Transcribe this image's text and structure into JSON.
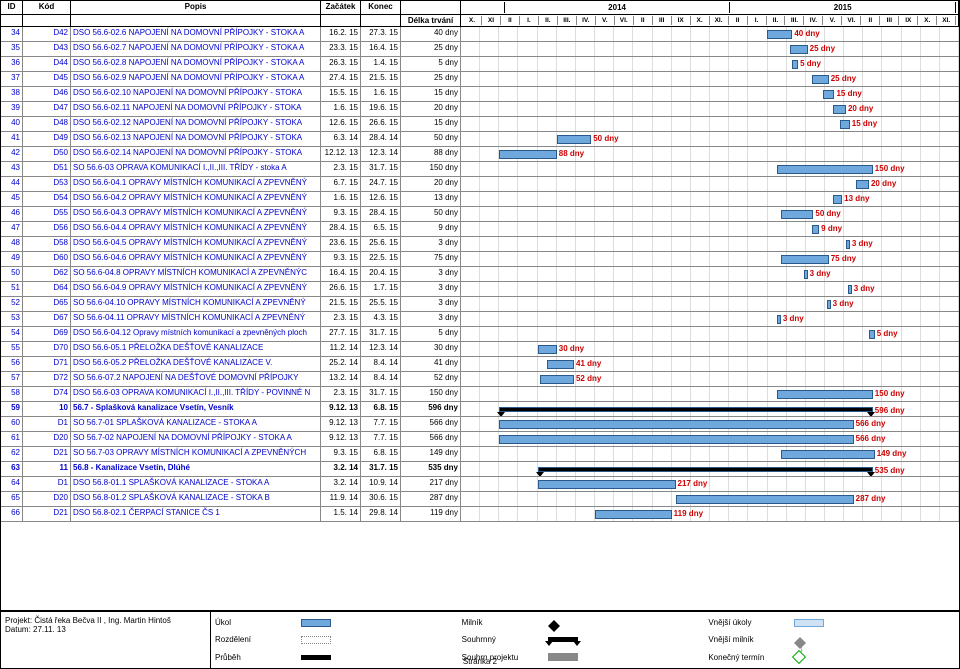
{
  "header": {
    "cols": [
      "ID",
      "Kód",
      "Popis",
      "Začátek",
      "Konec",
      "Délka trvání"
    ],
    "yearCols": [
      {
        "label": "",
        "months": [
          "X.",
          "XI"
        ]
      },
      {
        "label": "2014",
        "months": [
          "II",
          "I.",
          "II.",
          "III.",
          "IV.",
          "V.",
          "VI.",
          "II",
          "III",
          "IX",
          "X.",
          "XI."
        ]
      },
      {
        "label": "2015",
        "months": [
          "II",
          "I.",
          "II.",
          "III.",
          "IV.",
          "V.",
          "VI.",
          "II",
          "III",
          "IX",
          "X.",
          "XI."
        ]
      }
    ]
  },
  "ganttMonths": 26,
  "rows": [
    {
      "id": "34",
      "kod": "D42",
      "popis": "DSO 56.6-02.6 NAPOJENÍ NA DOMOVNÍ PŘÍPOJKY - STOKA A",
      "zac": "16.2. 15",
      "kon": "27.3. 15",
      "delka": "40 dny",
      "barStart": 16,
      "barLen": 1.3,
      "label": "40 dny"
    },
    {
      "id": "35",
      "kod": "D43",
      "popis": "DSO 56.6-02.7 NAPOJENÍ NA DOMOVNÍ PŘÍPOJKY - STOKA A",
      "zac": "23.3. 15",
      "kon": "16.4. 15",
      "delka": "25 dny",
      "barStart": 17.2,
      "barLen": 0.9,
      "label": "25 dny"
    },
    {
      "id": "36",
      "kod": "D44",
      "popis": "DSO 56.6-02.8 NAPOJENÍ NA DOMOVNÍ PŘÍPOJKY - STOKA A",
      "zac": "26.3. 15",
      "kon": "1.4. 15",
      "delka": "5 dny",
      "barStart": 17.3,
      "barLen": 0.3,
      "label": "5 dny"
    },
    {
      "id": "37",
      "kod": "D45",
      "popis": "DSO 56.6-02.9 NAPOJENÍ NA DOMOVNÍ PŘÍPOJKY - STOKA A",
      "zac": "27.4. 15",
      "kon": "21.5. 15",
      "delka": "25 dny",
      "barStart": 18.3,
      "barLen": 0.9,
      "label": "25 dny"
    },
    {
      "id": "38",
      "kod": "D46",
      "popis": "DSO 56.6-02.10 NAPOJENÍ NA DOMOVNÍ PŘÍPOJKY - STOKA",
      "zac": "15.5. 15",
      "kon": "1.6. 15",
      "delka": "15 dny",
      "barStart": 18.9,
      "barLen": 0.6,
      "label": "15 dny"
    },
    {
      "id": "39",
      "kod": "D47",
      "popis": "DSO 56.6-02.11 NAPOJENÍ NA DOMOVNÍ PŘÍPOJKY - STOKA",
      "zac": "1.6. 15",
      "kon": "19.6. 15",
      "delka": "20 dny",
      "barStart": 19.4,
      "barLen": 0.7,
      "label": "20 dny"
    },
    {
      "id": "40",
      "kod": "D48",
      "popis": "DSO 56.6-02.12 NAPOJENÍ NA DOMOVNÍ PŘÍPOJKY - STOKA",
      "zac": "12.6. 15",
      "kon": "26.6. 15",
      "delka": "15 dny",
      "barStart": 19.8,
      "barLen": 0.5,
      "label": "15 dny"
    },
    {
      "id": "41",
      "kod": "D49",
      "popis": "DSO 56.6-02.13 NAPOJENÍ NA DOMOVNÍ PŘÍPOJKY - STOKA",
      "zac": "6.3. 14",
      "kon": "28.4. 14",
      "delka": "50 dny",
      "barStart": 5,
      "barLen": 1.8,
      "label": "50 dny"
    },
    {
      "id": "42",
      "kod": "D50",
      "popis": "DSO 56.6-02.14 NAPOJENÍ NA DOMOVNÍ PŘÍPOJKY - STOKA",
      "zac": "12.12. 13",
      "kon": "12.3. 14",
      "delka": "88 dny",
      "barStart": 2,
      "barLen": 3,
      "label": "88 dny"
    },
    {
      "id": "43",
      "kod": "D51",
      "popis": "SO 56.6-03 OPRAVA KOMUNIKACÍ I.,II.,III. TŘÍDY - stoka A",
      "zac": "2.3. 15",
      "kon": "31.7. 15",
      "delka": "150 dny",
      "barStart": 16.5,
      "barLen": 5,
      "label": "150 dny"
    },
    {
      "id": "44",
      "kod": "D53",
      "popis": "DSO 56.6-04.1 OPRAVY MÍSTNÍCH KOMUNIKACÍ A ZPEVNĚNÝ",
      "zac": "6.7. 15",
      "kon": "24.7. 15",
      "delka": "20 dny",
      "barStart": 20.6,
      "barLen": 0.7,
      "label": "20 dny"
    },
    {
      "id": "45",
      "kod": "D54",
      "popis": "DSO 56.6-04.2 OPRAVY MÍSTNÍCH KOMUNIKACÍ A ZPEVNĚNÝ",
      "zac": "1.6. 15",
      "kon": "12.6. 15",
      "delka": "13 dny",
      "barStart": 19.4,
      "barLen": 0.5,
      "label": "13 dny"
    },
    {
      "id": "46",
      "kod": "D55",
      "popis": "DSO 56.6-04.3 OPRAVY MÍSTNÍCH KOMUNIKACÍ A ZPEVNĚNÝ",
      "zac": "9.3. 15",
      "kon": "28.4. 15",
      "delka": "50 dny",
      "barStart": 16.7,
      "barLen": 1.7,
      "label": "50 dny"
    },
    {
      "id": "47",
      "kod": "D56",
      "popis": "DSO 56.6-04.4 OPRAVY MÍSTNÍCH KOMUNIKACÍ A ZPEVNĚNÝ",
      "zac": "28.4. 15",
      "kon": "6.5. 15",
      "delka": "9 dny",
      "barStart": 18.3,
      "barLen": 0.4,
      "label": "9 dny"
    },
    {
      "id": "48",
      "kod": "D58",
      "popis": "DSO 56.6-04.5 OPRAVY MÍSTNÍCH KOMUNIKACÍ A ZPEVNĚNÝ",
      "zac": "23.6. 15",
      "kon": "25.6. 15",
      "delka": "3 dny",
      "barStart": 20.1,
      "barLen": 0.2,
      "label": "3 dny"
    },
    {
      "id": "49",
      "kod": "D60",
      "popis": "DSO 56.6-04.6 OPRAVY MÍSTNÍCH KOMUNIKACÍ A ZPEVNĚNÝ",
      "zac": "9.3. 15",
      "kon": "22.5. 15",
      "delka": "75 dny",
      "barStart": 16.7,
      "barLen": 2.5,
      "label": "75 dny"
    },
    {
      "id": "50",
      "kod": "D62",
      "popis": "SO 56.6-04.8 OPRAVY MÍSTNÍCH KOMUNIKACÍ A ZPEVNĚNÝC",
      "zac": "16.4. 15",
      "kon": "20.4. 15",
      "delka": "3 dny",
      "barStart": 17.9,
      "barLen": 0.2,
      "label": "3 dny"
    },
    {
      "id": "51",
      "kod": "D64",
      "popis": "DSO 56.6-04.9 OPRAVY MÍSTNÍCH KOMUNIKACÍ A ZPEVNĚNÝ",
      "zac": "26.6. 15",
      "kon": "1.7. 15",
      "delka": "3 dny",
      "barStart": 20.2,
      "barLen": 0.2,
      "label": "3 dny"
    },
    {
      "id": "52",
      "kod": "D65",
      "popis": "SO 56.6-04.10 OPRAVY MÍSTNÍCH KOMUNIKACÍ A ZPEVNĚNÝ",
      "zac": "21.5. 15",
      "kon": "25.5. 15",
      "delka": "3 dny",
      "barStart": 19.1,
      "barLen": 0.2,
      "label": "3 dny"
    },
    {
      "id": "53",
      "kod": "D67",
      "popis": "SO 56.6-04.11 OPRAVY MÍSTNÍCH KOMUNIKACÍ A ZPEVNĚNÝ",
      "zac": "2.3. 15",
      "kon": "4.3. 15",
      "delka": "3 dny",
      "barStart": 16.5,
      "barLen": 0.2,
      "label": "3 dny"
    },
    {
      "id": "54",
      "kod": "D69",
      "popis": "DSO 56.6-04.12 Opravy místních komunikací a zpevněných ploch",
      "zac": "27.7. 15",
      "kon": "31.7. 15",
      "delka": "5 dny",
      "barStart": 21.3,
      "barLen": 0.3,
      "label": "5 dny"
    },
    {
      "id": "55",
      "kod": "D70",
      "popis": "DSO 56.6-05.1 PŘELOŽKA DEŠŤOVÉ KANALIZACE",
      "zac": "11.2. 14",
      "kon": "12.3. 14",
      "delka": "30 dny",
      "barStart": 4,
      "barLen": 1,
      "label": "30 dny"
    },
    {
      "id": "56",
      "kod": "D71",
      "popis": "DSO 56.6-05.2 PŘELOŽKA DEŠŤOVÉ KANALIZACE V.",
      "zac": "25.2. 14",
      "kon": "8.4. 14",
      "delka": "41 dny",
      "barStart": 4.5,
      "barLen": 1.4,
      "label": "41 dny"
    },
    {
      "id": "57",
      "kod": "D72",
      "popis": "SO 56.6-07.2 NAPOJENÍ NA DEŠŤOVÉ DOMOVNÍ PŘÍPOJKY",
      "zac": "13.2. 14",
      "kon": "8.4. 14",
      "delka": "52 dny",
      "barStart": 4.1,
      "barLen": 1.8,
      "label": "52 dny"
    },
    {
      "id": "58",
      "kod": "D74",
      "popis": "DSO 56.6-03 OPRAVA KOMUNIKACÍ I.,II.,III. TŘÍDY - POVINNÉ N",
      "zac": "2.3. 15",
      "kon": "31.7. 15",
      "delka": "150 dny",
      "barStart": 16.5,
      "barLen": 5,
      "label": "150 dny"
    },
    {
      "id": "59",
      "kod": "10",
      "popis": "56.7 - Splašková kanalizace Vsetín, Vesník",
      "zac": "9.12. 13",
      "kon": "6.8. 15",
      "delka": "596 dny",
      "barStart": 2,
      "barLen": 19.5,
      "label": "596 dny",
      "summary": true,
      "bold": true
    },
    {
      "id": "60",
      "kod": "D1",
      "popis": "SO 56.7-01 SPLAŠKOVÁ KANALIZACE - STOKA A",
      "zac": "9.12. 13",
      "kon": "7.7. 15",
      "delka": "566 dny",
      "barStart": 2,
      "barLen": 18.5,
      "label": "566 dny"
    },
    {
      "id": "61",
      "kod": "D20",
      "popis": "SO 56.7-02 NAPOJENÍ NA DOMOVNÍ PŘÍPOJKY - STOKA A",
      "zac": "9.12. 13",
      "kon": "7.7. 15",
      "delka": "566 dny",
      "barStart": 2,
      "barLen": 18.5,
      "label": "566 dny"
    },
    {
      "id": "62",
      "kod": "D21",
      "popis": "SO 56.7-03 OPRAVY MÍSTNÍCH KOMUNIKACÍ A ZPEVNĚNÝCH",
      "zac": "9.3. 15",
      "kon": "6.8. 15",
      "delka": "149 dny",
      "barStart": 16.7,
      "barLen": 4.9,
      "label": "149 dny"
    },
    {
      "id": "63",
      "kod": "11",
      "popis": "56.8 - Kanalizace Vsetín, Dlúhé",
      "zac": "3.2. 14",
      "kon": "31.7. 15",
      "delka": "535 dny",
      "barStart": 4,
      "barLen": 17.5,
      "label": "535 dny",
      "summary": true,
      "bold": true
    },
    {
      "id": "64",
      "kod": "D1",
      "popis": "DSO 56.8-01.1 SPLAŠKOVÁ KANALIZACE - STOKA A",
      "zac": "3.2. 14",
      "kon": "10.9. 14",
      "delka": "217 dny",
      "barStart": 4,
      "barLen": 7.2,
      "label": "217 dny"
    },
    {
      "id": "65",
      "kod": "D20",
      "popis": "DSO 56.8-01.2 SPLAŠKOVÁ KANALIZACE - STOKA B",
      "zac": "11.9. 14",
      "kon": "30.6. 15",
      "delka": "287 dny",
      "barStart": 11.2,
      "barLen": 9.3,
      "label": "287 dny"
    },
    {
      "id": "66",
      "kod": "D21",
      "popis": "DSO 56.8-02.1 ČERPACÍ STANICE ČS 1",
      "zac": "1.5. 14",
      "kon": "29.8. 14",
      "delka": "119 dny",
      "barStart": 7,
      "barLen": 4,
      "label": "119 dny"
    }
  ],
  "legend": {
    "projectLine1": "Projekt: Čistá řeka Bečva II , Ing. Martin Hintoš",
    "projectLine2": "Datum: 27.11. 13",
    "items": [
      [
        "Úkol",
        "task"
      ],
      [
        "Milník",
        "mile"
      ],
      [
        "Vnější úkoly",
        "ext"
      ],
      [
        "Rozdělení",
        "split"
      ],
      [
        "Souhrnný",
        "sumr"
      ],
      [
        "Vnější milník",
        "extmile"
      ],
      [
        "Průběh",
        "prog"
      ],
      [
        "Souhrn projektu",
        "sumproj"
      ],
      [
        "Konečný termín",
        "deadline"
      ]
    ]
  },
  "footer": "Stránka 2"
}
